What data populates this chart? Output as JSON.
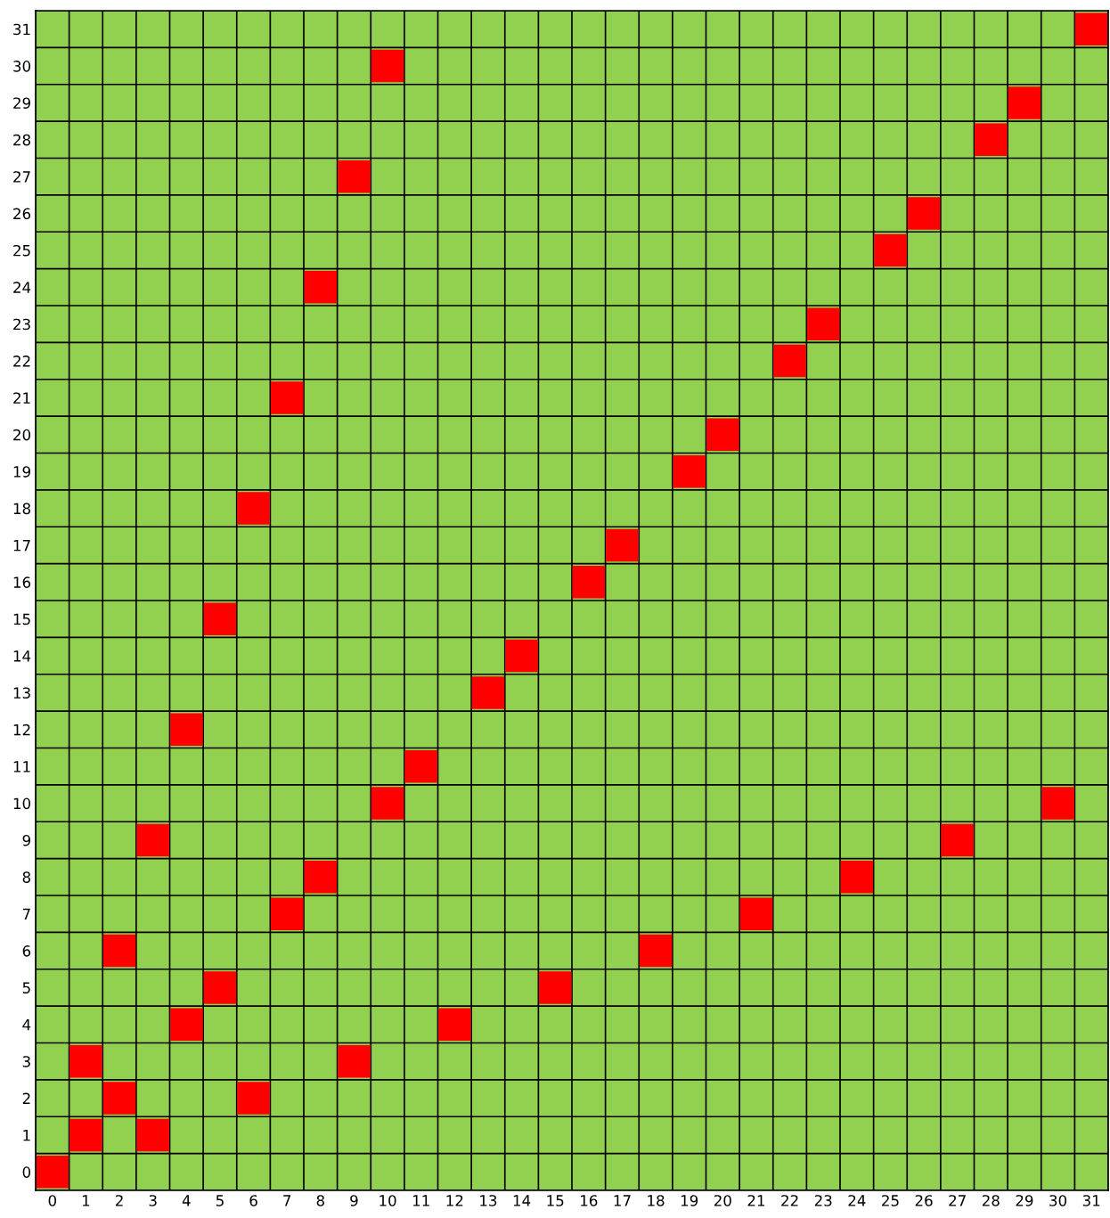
{
  "chart_data": {
    "type": "scatter",
    "marker": "square",
    "grid": true,
    "x": [
      31,
      10,
      29,
      28,
      9,
      26,
      25,
      8,
      23,
      22,
      7,
      20,
      19,
      6,
      17,
      16,
      5,
      14,
      13,
      4,
      11,
      10,
      30,
      3,
      27,
      8,
      24,
      7,
      21,
      2,
      18,
      5,
      15,
      4,
      12,
      1,
      9,
      2,
      6,
      1,
      3,
      0
    ],
    "values": [
      31,
      30,
      29,
      28,
      27,
      26,
      25,
      24,
      23,
      22,
      21,
      20,
      19,
      18,
      17,
      16,
      15,
      14,
      13,
      12,
      11,
      10,
      10,
      9,
      9,
      8,
      8,
      7,
      7,
      6,
      6,
      5,
      5,
      4,
      4,
      3,
      3,
      2,
      2,
      1,
      1,
      0
    ],
    "color": "#ff0000",
    "xlim": [
      -0.5,
      31.5
    ],
    "ylim": [
      -0.5,
      31.5
    ],
    "xticks": [
      0,
      1,
      2,
      3,
      4,
      5,
      6,
      7,
      8,
      9,
      10,
      11,
      12,
      13,
      14,
      15,
      16,
      17,
      18,
      19,
      20,
      21,
      22,
      23,
      24,
      25,
      26,
      27,
      28,
      29,
      30,
      31
    ],
    "yticks": [
      0,
      1,
      2,
      3,
      4,
      5,
      6,
      7,
      8,
      9,
      10,
      11,
      12,
      13,
      14,
      15,
      16,
      17,
      18,
      19,
      20,
      21,
      22,
      23,
      24,
      25,
      26,
      27,
      28,
      29,
      30,
      31
    ]
  }
}
